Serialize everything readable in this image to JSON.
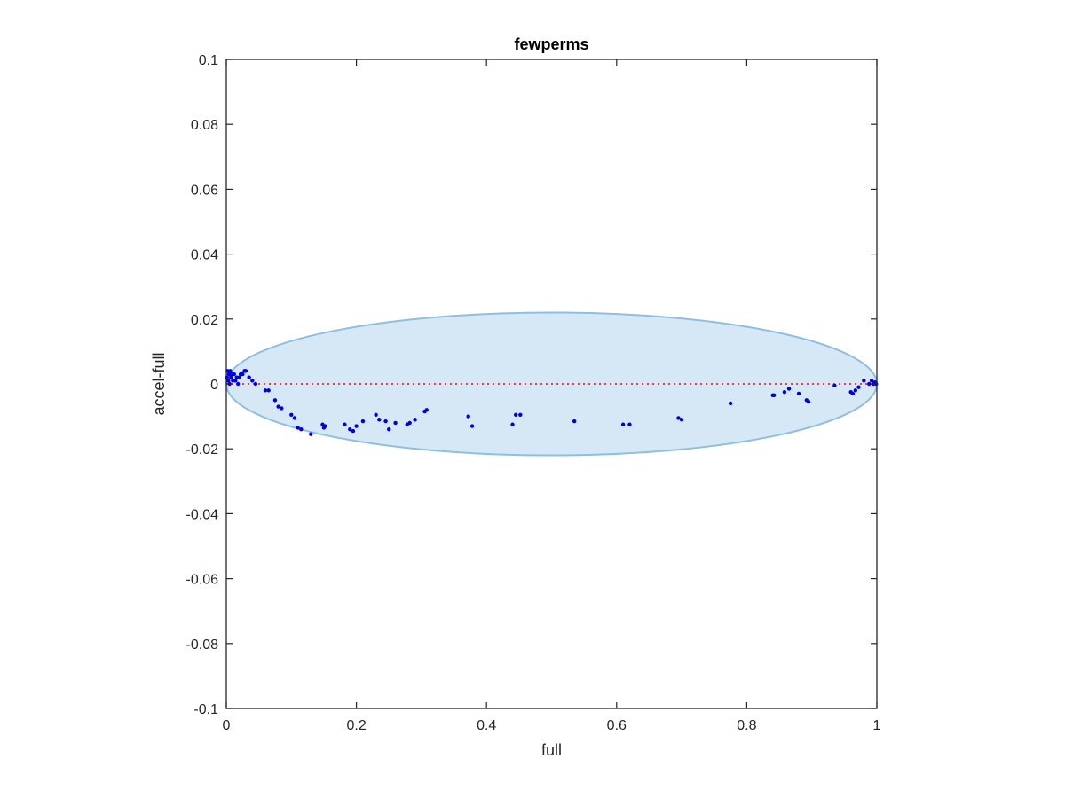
{
  "chart_data": {
    "type": "scatter",
    "title": "fewperms",
    "xlabel": "full",
    "ylabel": "accel-full",
    "xlim": [
      0,
      1
    ],
    "ylim": [
      -0.1,
      0.1
    ],
    "xticks": [
      0,
      0.2,
      0.4,
      0.6,
      0.8,
      1
    ],
    "xtick_labels": [
      "0",
      "0.2",
      "0.4",
      "0.6",
      "0.8",
      "1"
    ],
    "yticks": [
      -0.1,
      -0.08,
      -0.06,
      -0.04,
      -0.02,
      0,
      0.02,
      0.04,
      0.06,
      0.08,
      0.1
    ],
    "ytick_labels": [
      "-0.1",
      "-0.08",
      "-0.06",
      "-0.04",
      "-0.02",
      "0",
      "0.02",
      "0.04",
      "0.06",
      "0.08",
      "0.1"
    ],
    "grid": false,
    "reference_line": {
      "y": 0,
      "style": "dotted",
      "color": "#ff0000"
    },
    "region": {
      "shape": "ellipse",
      "center": [
        0.5,
        0
      ],
      "radii": [
        0.5,
        0.022
      ],
      "fill": "#d6e8f5",
      "stroke": "#8fbfe0"
    },
    "colors": {
      "points": "#0000e6",
      "axes": "#262626"
    },
    "points": [
      {
        "x": 0.001,
        "y": 0.002
      },
      {
        "x": 0.002,
        "y": 0.004
      },
      {
        "x": 0.003,
        "y": 0.001
      },
      {
        "x": 0.004,
        "y": 0.003
      },
      {
        "x": 0.005,
        "y": 0.0
      },
      {
        "x": 0.006,
        "y": 0.004
      },
      {
        "x": 0.007,
        "y": 0.002
      },
      {
        "x": 0.008,
        "y": 0.003
      },
      {
        "x": 0.01,
        "y": 0.001
      },
      {
        "x": 0.012,
        "y": 0.003
      },
      {
        "x": 0.014,
        "y": 0.001
      },
      {
        "x": 0.016,
        "y": 0.002
      },
      {
        "x": 0.018,
        "y": 0.0
      },
      {
        "x": 0.02,
        "y": 0.002
      },
      {
        "x": 0.022,
        "y": 0.003
      },
      {
        "x": 0.025,
        "y": 0.003
      },
      {
        "x": 0.028,
        "y": 0.004
      },
      {
        "x": 0.03,
        "y": 0.004
      },
      {
        "x": 0.035,
        "y": 0.002
      },
      {
        "x": 0.04,
        "y": 0.001
      },
      {
        "x": 0.045,
        "y": 0.0
      },
      {
        "x": 0.06,
        "y": -0.002
      },
      {
        "x": 0.065,
        "y": -0.002
      },
      {
        "x": 0.075,
        "y": -0.005
      },
      {
        "x": 0.08,
        "y": -0.007
      },
      {
        "x": 0.085,
        "y": -0.0075
      },
      {
        "x": 0.1,
        "y": -0.0095
      },
      {
        "x": 0.105,
        "y": -0.0105
      },
      {
        "x": 0.11,
        "y": -0.0135
      },
      {
        "x": 0.115,
        "y": -0.014
      },
      {
        "x": 0.13,
        "y": -0.0155
      },
      {
        "x": 0.148,
        "y": -0.0125
      },
      {
        "x": 0.15,
        "y": -0.0135
      },
      {
        "x": 0.152,
        "y": -0.013
      },
      {
        "x": 0.182,
        "y": -0.0125
      },
      {
        "x": 0.19,
        "y": -0.014
      },
      {
        "x": 0.195,
        "y": -0.0145
      },
      {
        "x": 0.2,
        "y": -0.013
      },
      {
        "x": 0.21,
        "y": -0.0115
      },
      {
        "x": 0.23,
        "y": -0.0095
      },
      {
        "x": 0.235,
        "y": -0.011
      },
      {
        "x": 0.245,
        "y": -0.0115
      },
      {
        "x": 0.25,
        "y": -0.014
      },
      {
        "x": 0.26,
        "y": -0.012
      },
      {
        "x": 0.278,
        "y": -0.0125
      },
      {
        "x": 0.282,
        "y": -0.012
      },
      {
        "x": 0.29,
        "y": -0.011
      },
      {
        "x": 0.305,
        "y": -0.0085
      },
      {
        "x": 0.308,
        "y": -0.008
      },
      {
        "x": 0.372,
        "y": -0.01
      },
      {
        "x": 0.378,
        "y": -0.013
      },
      {
        "x": 0.44,
        "y": -0.0125
      },
      {
        "x": 0.445,
        "y": -0.0095
      },
      {
        "x": 0.452,
        "y": -0.0095
      },
      {
        "x": 0.535,
        "y": -0.0115
      },
      {
        "x": 0.61,
        "y": -0.0125
      },
      {
        "x": 0.62,
        "y": -0.0125
      },
      {
        "x": 0.695,
        "y": -0.0105
      },
      {
        "x": 0.7,
        "y": -0.011
      },
      {
        "x": 0.775,
        "y": -0.006
      },
      {
        "x": 0.84,
        "y": -0.0035
      },
      {
        "x": 0.842,
        "y": -0.0035
      },
      {
        "x": 0.858,
        "y": -0.0025
      },
      {
        "x": 0.865,
        "y": -0.0015
      },
      {
        "x": 0.88,
        "y": -0.003
      },
      {
        "x": 0.892,
        "y": -0.005
      },
      {
        "x": 0.895,
        "y": -0.0055
      },
      {
        "x": 0.935,
        "y": -0.0005
      },
      {
        "x": 0.96,
        "y": -0.0025
      },
      {
        "x": 0.963,
        "y": -0.003
      },
      {
        "x": 0.967,
        "y": -0.002
      },
      {
        "x": 0.972,
        "y": -0.001
      },
      {
        "x": 0.98,
        "y": 0.001
      },
      {
        "x": 0.988,
        "y": 0.0
      },
      {
        "x": 0.992,
        "y": 0.001
      },
      {
        "x": 0.995,
        "y": 0.0
      },
      {
        "x": 0.997,
        "y": 0.0005
      },
      {
        "x": 0.999,
        "y": 0.0
      }
    ]
  }
}
